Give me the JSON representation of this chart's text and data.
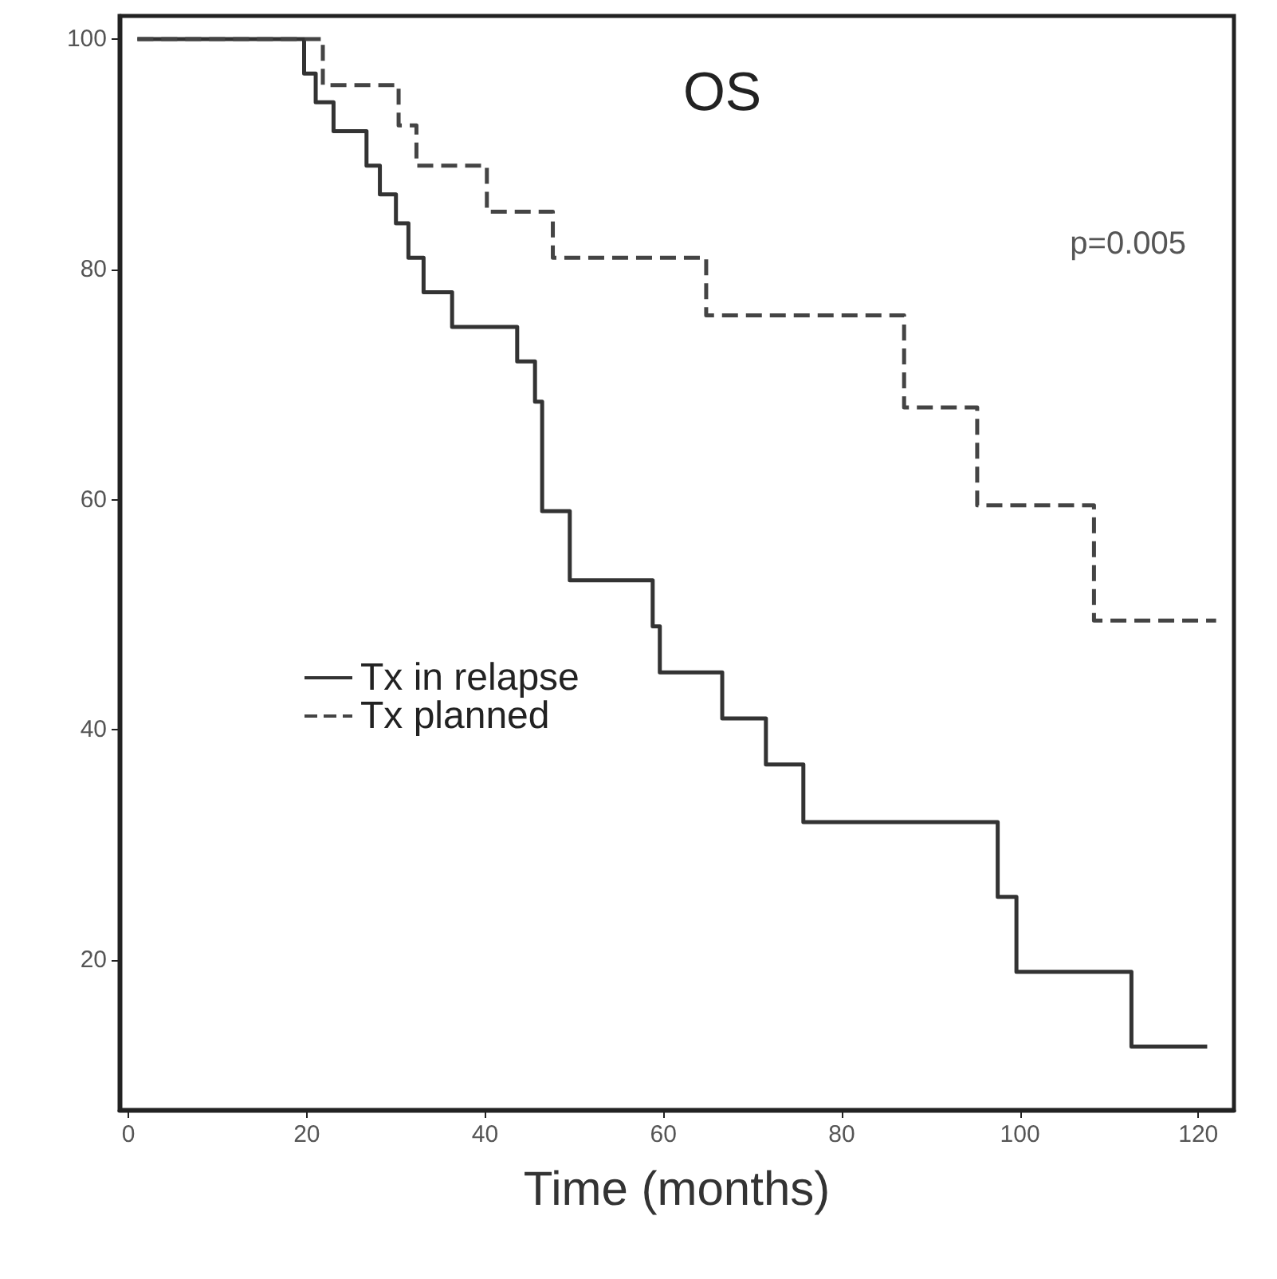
{
  "chart_data": {
    "type": "step",
    "title": "OS",
    "xlabel": "Time (months)",
    "annotations": [
      "p=0.005"
    ],
    "series": [
      {
        "name": "Tx in relapse",
        "color": "#333333",
        "line_style": "solid",
        "x": [
          1,
          19.7,
          21,
          23,
          26.7,
          28.2,
          30,
          31.4,
          33.1,
          36.3,
          43.6,
          45.6,
          46.4,
          49.5,
          58.8,
          59.6,
          66.6,
          71.5,
          75.7,
          97.5,
          99.6,
          112.5,
          121
        ],
        "values": [
          100,
          97,
          94.5,
          92,
          89,
          86.5,
          84,
          81,
          78,
          75,
          72,
          68.5,
          59,
          53,
          49,
          45,
          41,
          37,
          32,
          25.5,
          19,
          12.5,
          12.5
        ]
      },
      {
        "name": "Tx planned",
        "color": "#444444",
        "line_style": "dashed",
        "x": [
          1,
          21.8,
          30.3,
          32.3,
          40.2,
          47.6,
          64.8,
          87,
          95.2,
          108.3,
          122
        ],
        "values": [
          100,
          96,
          92.5,
          89,
          85,
          81,
          76,
          68,
          59.5,
          49.5,
          49.5
        ]
      }
    ],
    "xlim": [
      -1,
      124
    ],
    "ylim": [
      7,
      102
    ],
    "xticks": [
      0,
      20,
      40,
      60,
      80,
      100,
      120
    ],
    "yticks": [
      20,
      40,
      60,
      80,
      100
    ],
    "grid": false,
    "legend": "bottom left",
    "marker": "none"
  }
}
